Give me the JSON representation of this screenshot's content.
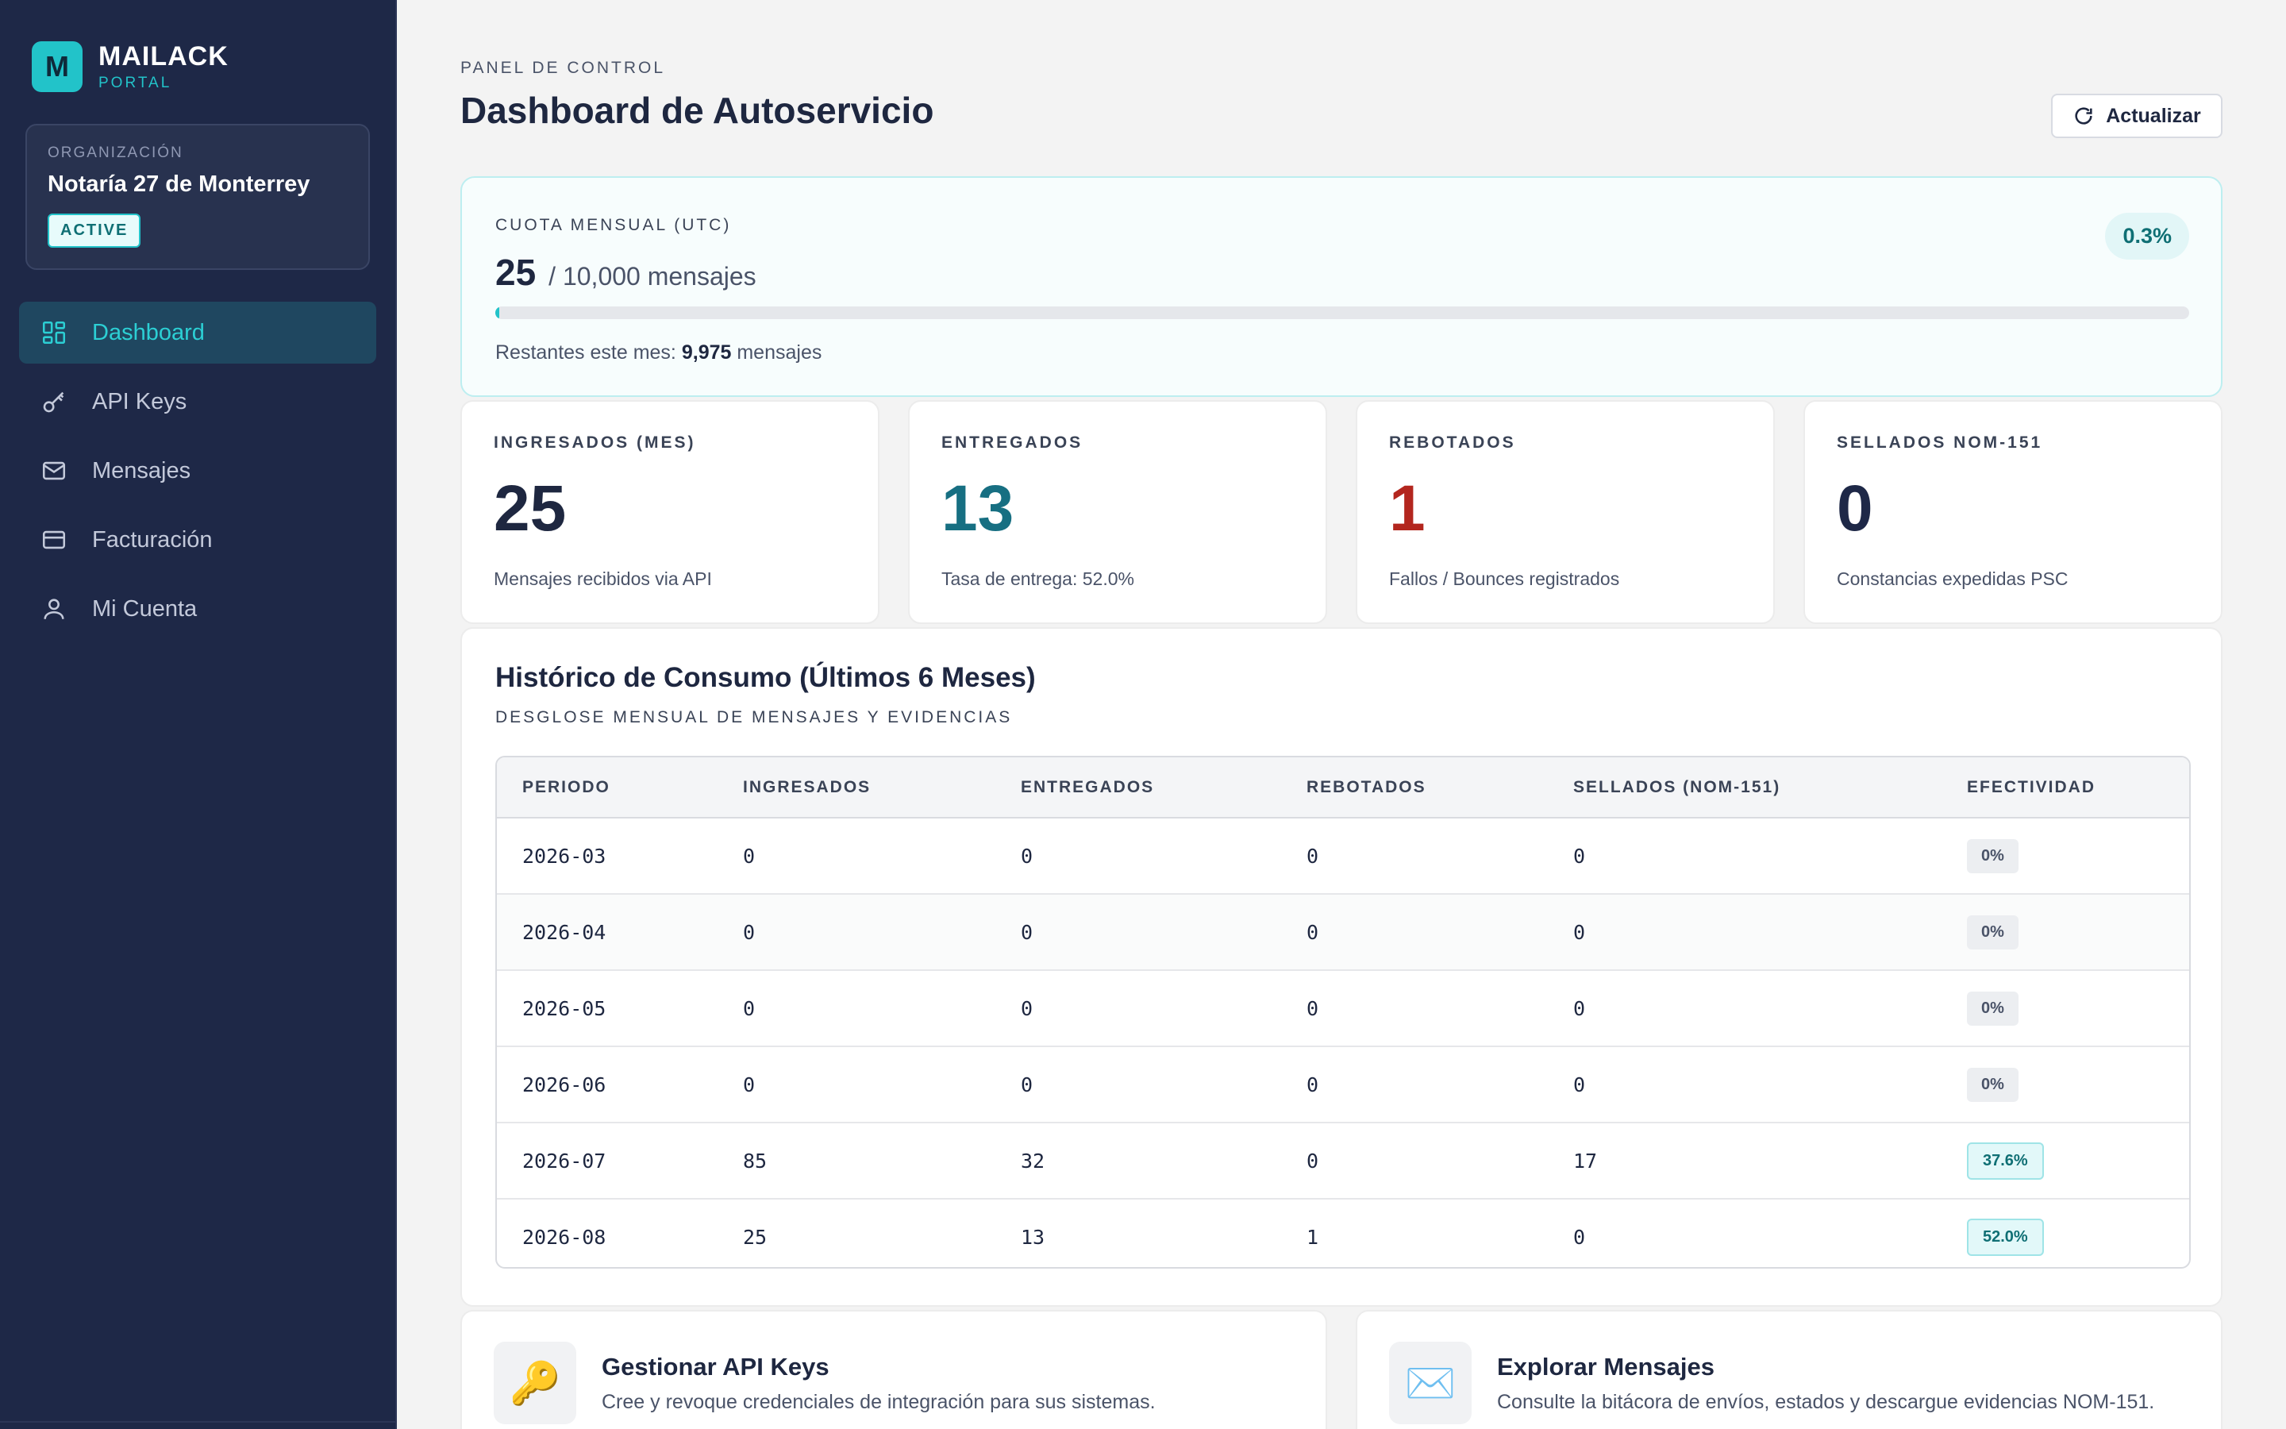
{
  "brand": {
    "logo_letter": "M",
    "name": "MAILACK",
    "subtitle": "PORTAL"
  },
  "organization": {
    "label": "ORGANIZACIÓN",
    "name": "Notaría 27 de Monterrey",
    "status": "ACTIVE"
  },
  "sidebar": {
    "items": [
      {
        "label": "Dashboard",
        "icon": "dashboard-grid-icon",
        "active": true
      },
      {
        "label": "API Keys",
        "icon": "key-icon",
        "active": false
      },
      {
        "label": "Mensajes",
        "icon": "mail-icon",
        "active": false
      },
      {
        "label": "Facturación",
        "icon": "credit-card-icon",
        "active": false
      },
      {
        "label": "Mi Cuenta",
        "icon": "user-icon",
        "active": false
      }
    ]
  },
  "header": {
    "breadcrumb": "PANEL DE CONTROL",
    "title": "Dashboard de Autoservicio",
    "refresh_label": "Actualizar",
    "refresh_icon": "refresh-icon"
  },
  "quota": {
    "label": "CUOTA MENSUAL (UTC)",
    "used": "25",
    "total": "/ 10,000 mensajes",
    "percent": "0.3%",
    "progress_fraction": 0.0025,
    "remaining_prefix": "Restantes este mes:",
    "remaining_value": "9,975",
    "remaining_suffix": "mensajes"
  },
  "stats": [
    {
      "label": "INGRESADOS (MES)",
      "value": "25",
      "caption": "Mensajes recibidos via API",
      "color": "#1e2740"
    },
    {
      "label": "ENTREGADOS",
      "value": "13",
      "caption": "Tasa de entrega: 52.0%",
      "color": "#176f82"
    },
    {
      "label": "REBOTADOS",
      "value": "1",
      "caption": "Fallos / Bounces registrados",
      "color": "#b3261e"
    },
    {
      "label": "SELLADOS NOM-151",
      "value": "0",
      "caption": "Constancias expedidas PSC",
      "color": "#1e2847"
    }
  ],
  "history": {
    "title": "Histórico de Consumo (Últimos 6 Meses)",
    "subtitle": "DESGLOSE MENSUAL DE MENSAJES Y EVIDENCIAS",
    "columns": [
      "PERIODO",
      "INGRESADOS",
      "ENTREGADOS",
      "REBOTADOS",
      "SELLADOS (NOM-151)",
      "EFECTIVIDAD"
    ],
    "rows": [
      [
        "2026-03",
        "0",
        "0",
        "0",
        "0",
        "0%"
      ],
      [
        "2026-04",
        "0",
        "0",
        "0",
        "0",
        "0%"
      ],
      [
        "2026-05",
        "0",
        "0",
        "0",
        "0",
        "0%"
      ],
      [
        "2026-06",
        "0",
        "0",
        "0",
        "0",
        "0%"
      ],
      [
        "2026-07",
        "85",
        "32",
        "0",
        "17",
        "37.6%"
      ],
      [
        "2026-08",
        "25",
        "13",
        "1",
        "0",
        "52.0%"
      ]
    ]
  },
  "quick_links": [
    {
      "icon": "key-emoji-icon",
      "glyph": "🔑",
      "title": "Gestionar API Keys",
      "description": "Cree y revoque credenciales de integración para sus sistemas."
    },
    {
      "icon": "envelope-emoji-icon",
      "glyph": "✉️",
      "title": "Explorar Mensajes",
      "description": "Consulte la bitácora de envíos, estados y descargue evidencias NOM-151."
    }
  ]
}
